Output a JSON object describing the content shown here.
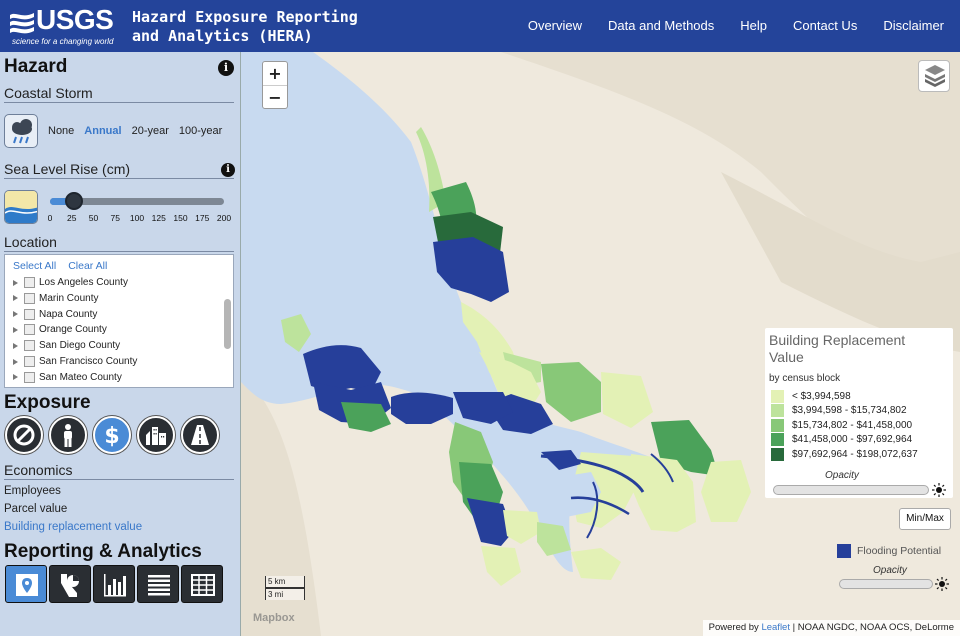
{
  "header": {
    "logo_text": "USGS",
    "logo_tagline": "science for a changing world",
    "title_line1": "Hazard Exposure Reporting",
    "title_line2": "and Analytics (HERA)",
    "nav": [
      "Overview",
      "Data and Methods",
      "Help",
      "Contact Us",
      "Disclaimer"
    ]
  },
  "hazard": {
    "title": "Hazard",
    "coastal_storm": {
      "title": "Coastal Storm",
      "icon": "storm-cloud-icon",
      "options": [
        "None",
        "Annual",
        "20-year",
        "100-year"
      ],
      "selected": "Annual"
    },
    "sea_level_rise": {
      "title": "Sea Level Rise (cm)",
      "icon": "sea-level-icon",
      "ticks": [
        "0",
        "25",
        "50",
        "75",
        "100",
        "125",
        "150",
        "175",
        "200"
      ],
      "value": 25
    }
  },
  "location": {
    "title": "Location",
    "select_all": "Select All",
    "clear_all": "Clear All",
    "items": [
      "Los Angeles County",
      "Marin County",
      "Napa County",
      "Orange County",
      "San Diego County",
      "San Francisco County",
      "San Mateo County"
    ]
  },
  "exposure": {
    "title": "Exposure",
    "buttons": [
      {
        "name": "none-icon",
        "selected": false
      },
      {
        "name": "person-icon",
        "selected": false
      },
      {
        "name": "dollar-icon",
        "selected": true
      },
      {
        "name": "buildings-icon",
        "selected": false
      },
      {
        "name": "road-icon",
        "selected": false
      }
    ],
    "category": "Economics",
    "items": [
      "Employees",
      "Parcel value",
      "Building replacement value"
    ],
    "selected_item": "Building replacement value"
  },
  "reporting": {
    "title": "Reporting & Analytics",
    "buttons": [
      {
        "name": "map-pin-icon",
        "selected": true
      },
      {
        "name": "state-chart-icon",
        "selected": false
      },
      {
        "name": "bar-chart-icon",
        "selected": false
      },
      {
        "name": "list-icon",
        "selected": false
      },
      {
        "name": "table-icon",
        "selected": false
      }
    ]
  },
  "map": {
    "zoom_in": "+",
    "zoom_out": "−",
    "legend": {
      "title": "Building Replacement Value",
      "subtitle": "by census block",
      "classes": [
        {
          "label": "< $3,994,598",
          "color": "#e3f1b5"
        },
        {
          "label": "$3,994,598 - $15,734,802",
          "color": "#bde39c"
        },
        {
          "label": "$15,734,802 - $41,458,000",
          "color": "#88c878"
        },
        {
          "label": "$41,458,000 - $97,692,964",
          "color": "#4ba25a"
        },
        {
          "label": "$97,692,964 - $198,072,637",
          "color": "#286a3b"
        }
      ],
      "opacity_label": "Opacity"
    },
    "minmax": "Min/Max",
    "flooding": {
      "label": "Flooding Potential",
      "color": "#263f9a",
      "opacity_label": "Opacity"
    },
    "scale": {
      "km": "5 km",
      "mi": "3 mi"
    },
    "watermark": "Mapbox",
    "attribution_prefix": "Powered by",
    "attribution_link": "Leaflet",
    "attribution_rest": "| NOAA NGDC, NOAA OCS, DeLorme"
  },
  "colors": {
    "header": "#24449a",
    "sidebar": "#c9d7ea",
    "accent": "#3a78c9",
    "water": "#c8daf0",
    "land": "#efe9dd"
  }
}
